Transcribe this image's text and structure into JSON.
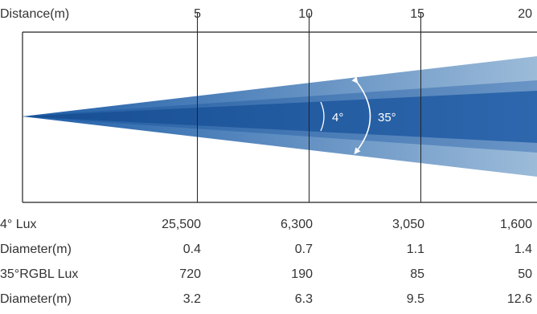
{
  "header": {
    "distance_label": "Distance(m)",
    "distances": [
      "5",
      "10",
      "15",
      "20"
    ]
  },
  "beam": {
    "narrow_angle_label": "4°",
    "wide_angle_label": "35°",
    "colors": {
      "wide_beam_start": "#1f5ea8",
      "wide_beam_end": "#9cbbd9",
      "mid_band_start": "#1a579f",
      "mid_band_end": "#6a95c6",
      "narrow_beam_start": "#174e93",
      "narrow_beam_end": "#2e67ad",
      "frame": "#222222",
      "arrow": "#ffffff"
    }
  },
  "table": {
    "rows": [
      {
        "label": "4°   Lux",
        "values": [
          "25,500",
          "6,300",
          "3,050",
          "1,600"
        ]
      },
      {
        "label": "Diameter(m)",
        "values": [
          "0.4",
          "0.7",
          "1.1",
          "1.4"
        ]
      },
      {
        "label": "35°RGBL Lux",
        "values": [
          "720",
          "190",
          "85",
          "50"
        ]
      },
      {
        "label": "Diameter(m)",
        "values": [
          "3.2",
          "6.3",
          "9.5",
          "12.6"
        ]
      }
    ]
  }
}
